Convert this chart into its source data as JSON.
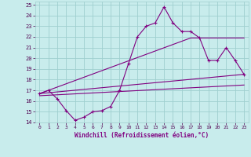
{
  "xlabel": "Windchill (Refroidissement éolien,°C)",
  "bg_color": "#c8ecec",
  "grid_color": "#9fcfcf",
  "line_color": "#800080",
  "xlim": [
    -0.5,
    23.5
  ],
  "ylim": [
    14,
    25.3
  ],
  "xticks": [
    0,
    1,
    2,
    3,
    4,
    5,
    6,
    7,
    8,
    9,
    10,
    11,
    12,
    13,
    14,
    15,
    16,
    17,
    18,
    19,
    20,
    21,
    22,
    23
  ],
  "yticks": [
    14,
    15,
    16,
    17,
    18,
    19,
    20,
    21,
    22,
    23,
    24,
    25
  ],
  "line1_x": [
    0,
    1,
    2,
    3,
    4,
    5,
    6,
    7,
    8,
    9,
    10,
    11,
    12,
    13,
    14,
    15,
    16,
    17,
    18,
    19,
    20,
    21,
    22,
    23
  ],
  "line1_y": [
    16.7,
    17.0,
    16.2,
    15.1,
    14.2,
    14.5,
    15.0,
    15.1,
    15.5,
    17.0,
    19.5,
    22.0,
    23.0,
    23.3,
    24.8,
    23.3,
    22.5,
    22.5,
    21.9,
    19.8,
    19.8,
    21.0,
    19.8,
    18.5
  ],
  "line2_x": [
    0,
    17,
    23
  ],
  "line2_y": [
    16.7,
    21.9,
    21.9
  ],
  "line3_x": [
    0,
    23
  ],
  "line3_y": [
    16.7,
    18.5
  ],
  "line4_x": [
    0,
    23
  ],
  "line4_y": [
    16.5,
    17.5
  ]
}
